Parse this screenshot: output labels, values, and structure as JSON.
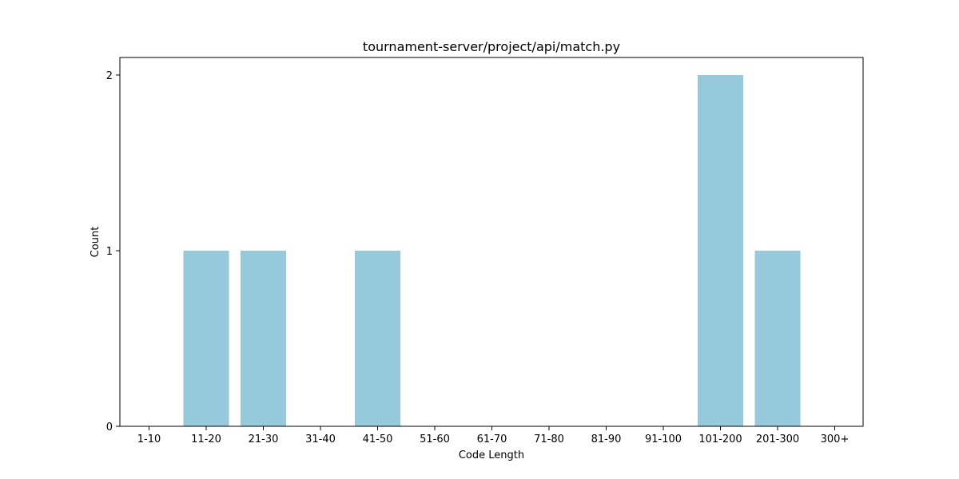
{
  "chart_data": {
    "type": "bar",
    "title": "tournament-server/project/api/match.py",
    "xlabel": "Code Length",
    "ylabel": "Count",
    "categories": [
      "1-10",
      "11-20",
      "21-30",
      "31-40",
      "41-50",
      "51-60",
      "61-70",
      "71-80",
      "81-90",
      "91-100",
      "101-200",
      "201-300",
      "300+"
    ],
    "values": [
      0,
      1,
      1,
      0,
      1,
      0,
      0,
      0,
      0,
      0,
      2,
      1,
      0
    ],
    "yticks": [
      0,
      1,
      2
    ],
    "ylim": [
      0,
      2.1
    ],
    "bar_color": "#96c9dc",
    "grid": false,
    "legend": "none"
  }
}
